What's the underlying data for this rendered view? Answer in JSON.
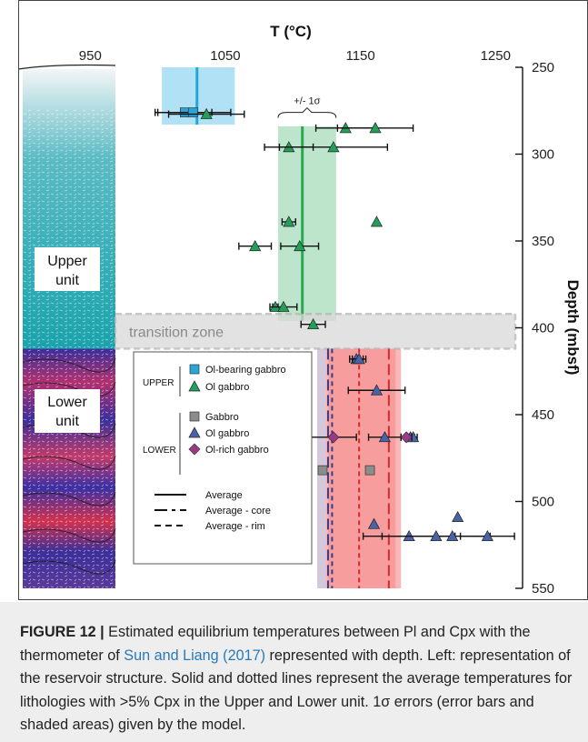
{
  "chart_data": {
    "type": "scatter",
    "title": "",
    "x_axis_label": "T (°C)",
    "y_axis_label": "Depth (mbsf)",
    "x_ticks": [
      "950",
      "1050",
      "1150",
      "1250"
    ],
    "y_ticks": [
      "250",
      "300",
      "350",
      "400",
      "450",
      "500",
      "550"
    ],
    "xlim": [
      900,
      1270
    ],
    "ylim": [
      550,
      250
    ],
    "y_reversed": true,
    "grid": false,
    "legend_position": "lower-left",
    "unit_labels": {
      "upper": "Upper unit",
      "lower": "Lower unit",
      "transition": "transition zone",
      "sigma": "+/- 1σ"
    },
    "transition_zone_depth": [
      392,
      412
    ],
    "bands": [
      {
        "unit": "UPPER",
        "lithology": "Ol-bearing gabbro",
        "mean": 1029,
        "xmin": 1003,
        "xmax": 1057,
        "ymin": 250,
        "ymax": 283,
        "color": "#a8def4",
        "line": "#23a6dc"
      },
      {
        "unit": "UPPER",
        "lithology": "Ol gabbro",
        "mean": 1107,
        "xmin": 1089,
        "xmax": 1132,
        "ymin": 284,
        "ymax": 396,
        "color": "#b6e2c6",
        "line": "#2aa84f"
      },
      {
        "unit": "LOWER",
        "lithology": "Lower unit (rim-core envelope)",
        "xmin": 1118,
        "xmax": 1180,
        "ymin": 412,
        "ymax": 550,
        "color": "#f9b0b0",
        "inner_color": "#f69191"
      }
    ],
    "average_lines": [
      {
        "unit": "LOWER",
        "style": "Average - core",
        "series": "blue",
        "x": 1126,
        "ymin": 412,
        "ymax": 550
      },
      {
        "unit": "LOWER",
        "style": "Average - rim",
        "series": "blue",
        "x": 1129,
        "ymin": 412,
        "ymax": 550
      },
      {
        "unit": "LOWER",
        "style": "Average - rim",
        "series": "red",
        "x": 1149,
        "ymin": 412,
        "ymax": 550
      },
      {
        "unit": "LOWER",
        "style": "Average - core",
        "series": "red",
        "x": 1171,
        "ymin": 412,
        "ymax": 550
      }
    ],
    "series": [
      {
        "name": "Ol-bearing gabbro",
        "unit": "UPPER",
        "marker": "square",
        "color": "#29a6d9",
        "points": [
          {
            "x": 1020,
            "y": 276,
            "err": 20
          },
          {
            "x": 1026,
            "y": 276,
            "err": 28
          }
        ]
      },
      {
        "name": "Ol gabbro",
        "unit": "UPPER",
        "marker": "triangle",
        "color": "#22a05a",
        "points": [
          {
            "x": 1036,
            "y": 277,
            "err": 28
          },
          {
            "x": 1139,
            "y": 285,
            "err": 22
          },
          {
            "x": 1161,
            "y": 285,
            "err": 28
          },
          {
            "x": 1097,
            "y": 296,
            "err": 18
          },
          {
            "x": 1130,
            "y": 296,
            "err": 40
          },
          {
            "x": 1097,
            "y": 339,
            "err": 5
          },
          {
            "x": 1162,
            "y": 339,
            "err": 0
          },
          {
            "x": 1072,
            "y": 353,
            "err": 12
          },
          {
            "x": 1105,
            "y": 353,
            "err": 14
          },
          {
            "x": 1087,
            "y": 388,
            "err": 2
          },
          {
            "x": 1093,
            "y": 388,
            "err": 10
          },
          {
            "x": 1115,
            "y": 398,
            "err": 9
          }
        ]
      },
      {
        "name": "Gabbro",
        "unit": "LOWER",
        "marker": "square",
        "color": "#8c8c8c",
        "points": [
          {
            "x": 1122,
            "y": 482,
            "err": 0
          },
          {
            "x": 1157,
            "y": 482,
            "err": 0
          }
        ]
      },
      {
        "name": "Ol gabbro",
        "unit": "LOWER",
        "marker": "triangle",
        "color": "#4a62a6",
        "points": [
          {
            "x": 1147,
            "y": 418,
            "err": 5
          },
          {
            "x": 1149,
            "y": 418,
            "err": 5
          },
          {
            "x": 1162,
            "y": 436,
            "err": 21
          },
          {
            "x": 1168,
            "y": 463,
            "err": 12
          },
          {
            "x": 1187,
            "y": 463,
            "err": 3
          },
          {
            "x": 1189,
            "y": 463,
            "err": 3
          },
          {
            "x": 1160,
            "y": 513,
            "err": 0
          },
          {
            "x": 1222,
            "y": 509,
            "err": 0
          },
          {
            "x": 1186,
            "y": 520,
            "err": 34
          },
          {
            "x": 1206,
            "y": 520,
            "err": 40
          },
          {
            "x": 1218,
            "y": 520,
            "err": 0
          },
          {
            "x": 1244,
            "y": 520,
            "err": 20
          }
        ]
      },
      {
        "name": "Ol-rich gabbro",
        "unit": "LOWER",
        "marker": "diamond",
        "color": "#9a3a87",
        "points": [
          {
            "x": 1130,
            "y": 463,
            "err": 17
          },
          {
            "x": 1184,
            "y": 463,
            "err": 4
          }
        ]
      }
    ]
  },
  "legend": {
    "upper_group": "UPPER",
    "lower_group": "LOWER",
    "items": [
      {
        "group": "UPPER",
        "label": "Ol-bearing gabbro",
        "marker": "square",
        "color": "#29a6d9"
      },
      {
        "group": "UPPER",
        "label": "Ol gabbro",
        "marker": "triangle",
        "color": "#22a05a"
      },
      {
        "group": "LOWER",
        "label": "Gabbro",
        "marker": "square",
        "color": "#8c8c8c"
      },
      {
        "group": "LOWER",
        "label": "Ol gabbro",
        "marker": "triangle",
        "color": "#4a62a6"
      },
      {
        "group": "LOWER",
        "label": "Ol-rich gabbro",
        "marker": "diamond",
        "color": "#9a3a87"
      }
    ],
    "line_items": [
      {
        "label": "Average",
        "style": "solid"
      },
      {
        "label": "Average - core",
        "style": "long-dash"
      },
      {
        "label": "Average - rim",
        "style": "short-dash"
      }
    ]
  },
  "caption": {
    "label": "FIGURE 12 |",
    "part1": " Estimated equilibrium temperatures between Pl and Cpx with the thermometer of ",
    "citation": "Sun and Liang (2017)",
    "part2": " represented with depth. Left: representation of the reservoir structure. Solid and dotted lines represent the average temperatures for lithologies with >5% Cpx in the Upper and Lower unit. 1σ errors (error bars and shaded areas) given by the model."
  },
  "colors": {
    "upper_rock": "#1aa3ac",
    "lower_rock": "#3a2f9a",
    "transition": "#d9d9d9",
    "error_bar": "#111111"
  }
}
